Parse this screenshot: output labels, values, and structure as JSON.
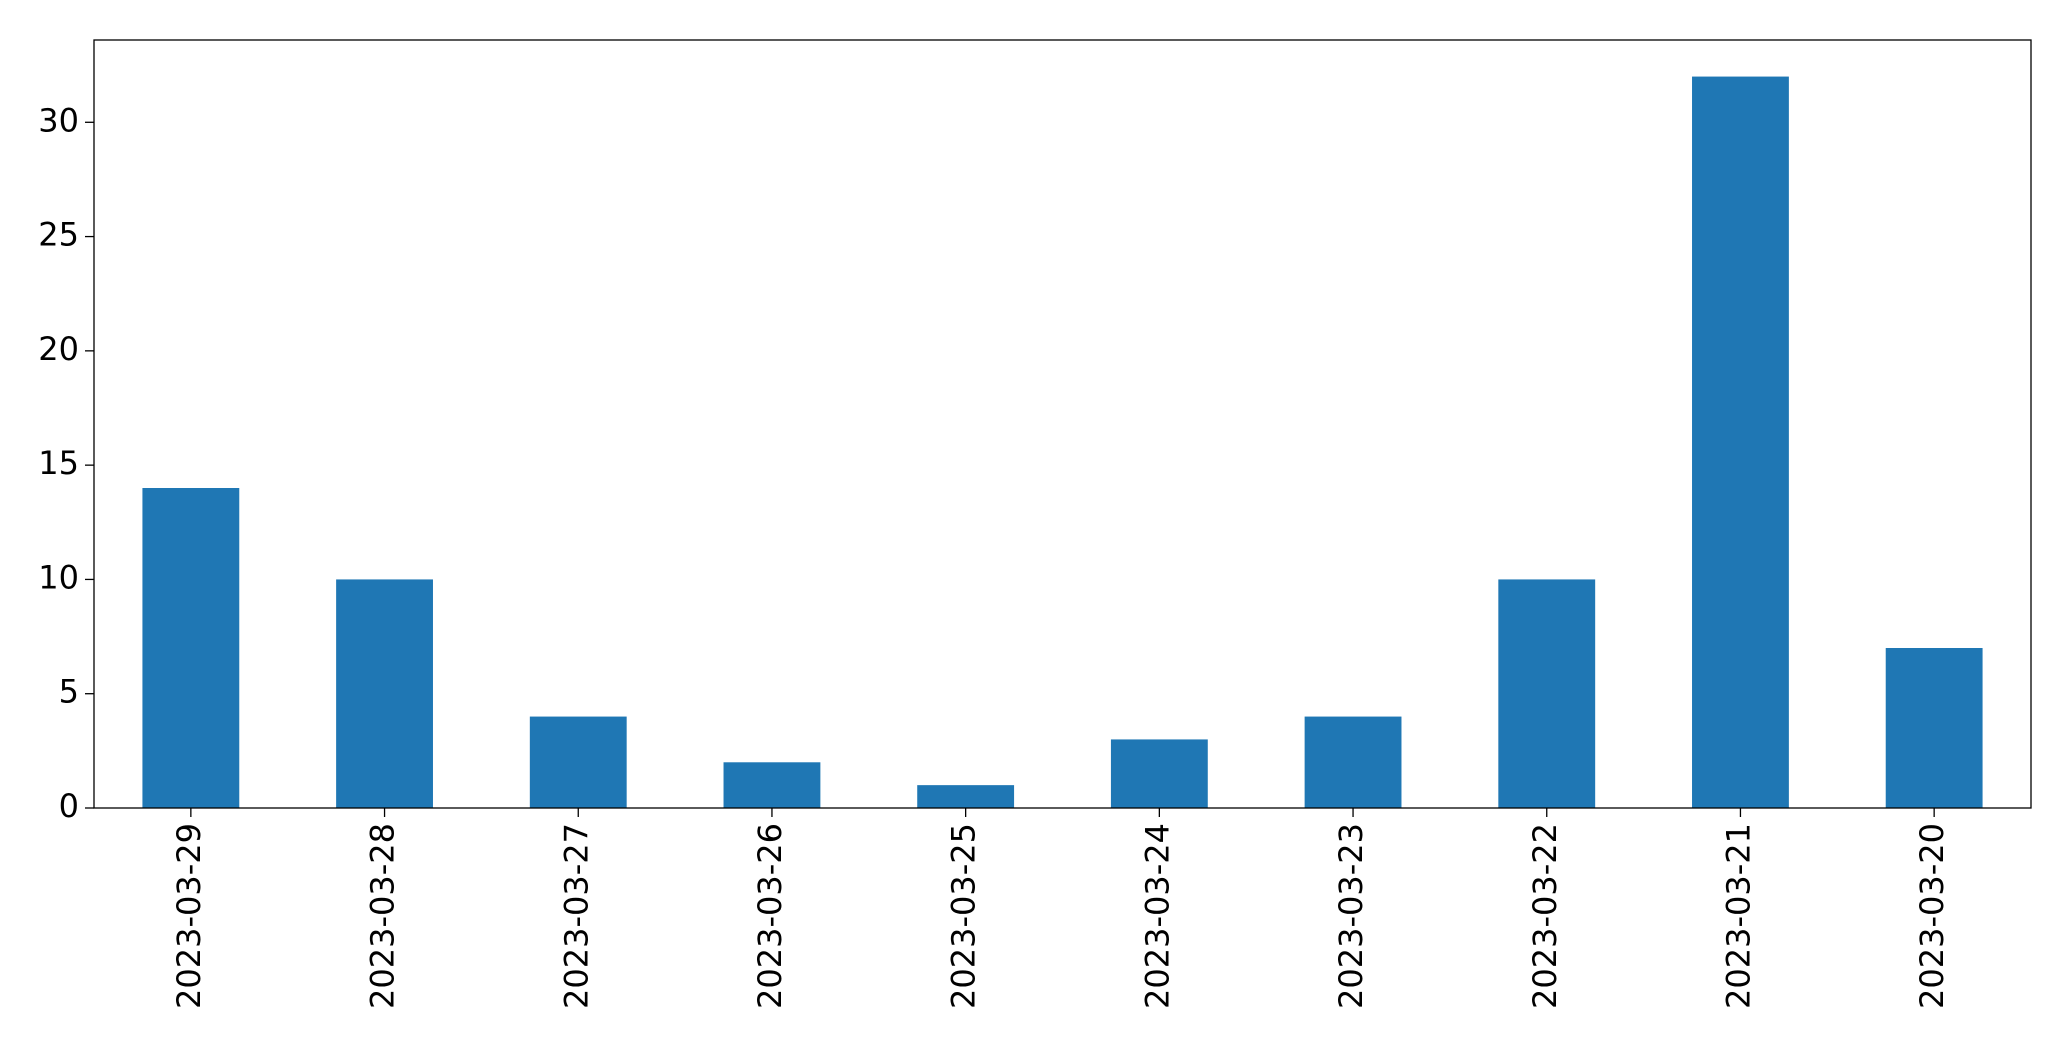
{
  "chart_data": {
    "type": "bar",
    "categories": [
      "2023-03-29",
      "2023-03-28",
      "2023-03-27",
      "2023-03-26",
      "2023-03-25",
      "2023-03-24",
      "2023-03-23",
      "2023-03-22",
      "2023-03-21",
      "2023-03-20"
    ],
    "values": [
      14,
      10,
      4,
      2,
      1,
      3,
      4,
      10,
      32,
      7
    ],
    "color": "#1f77b4",
    "ylim": [
      0,
      33.6
    ],
    "yticks": [
      0,
      5,
      10,
      15,
      20,
      25,
      30
    ],
    "grid": false
  }
}
